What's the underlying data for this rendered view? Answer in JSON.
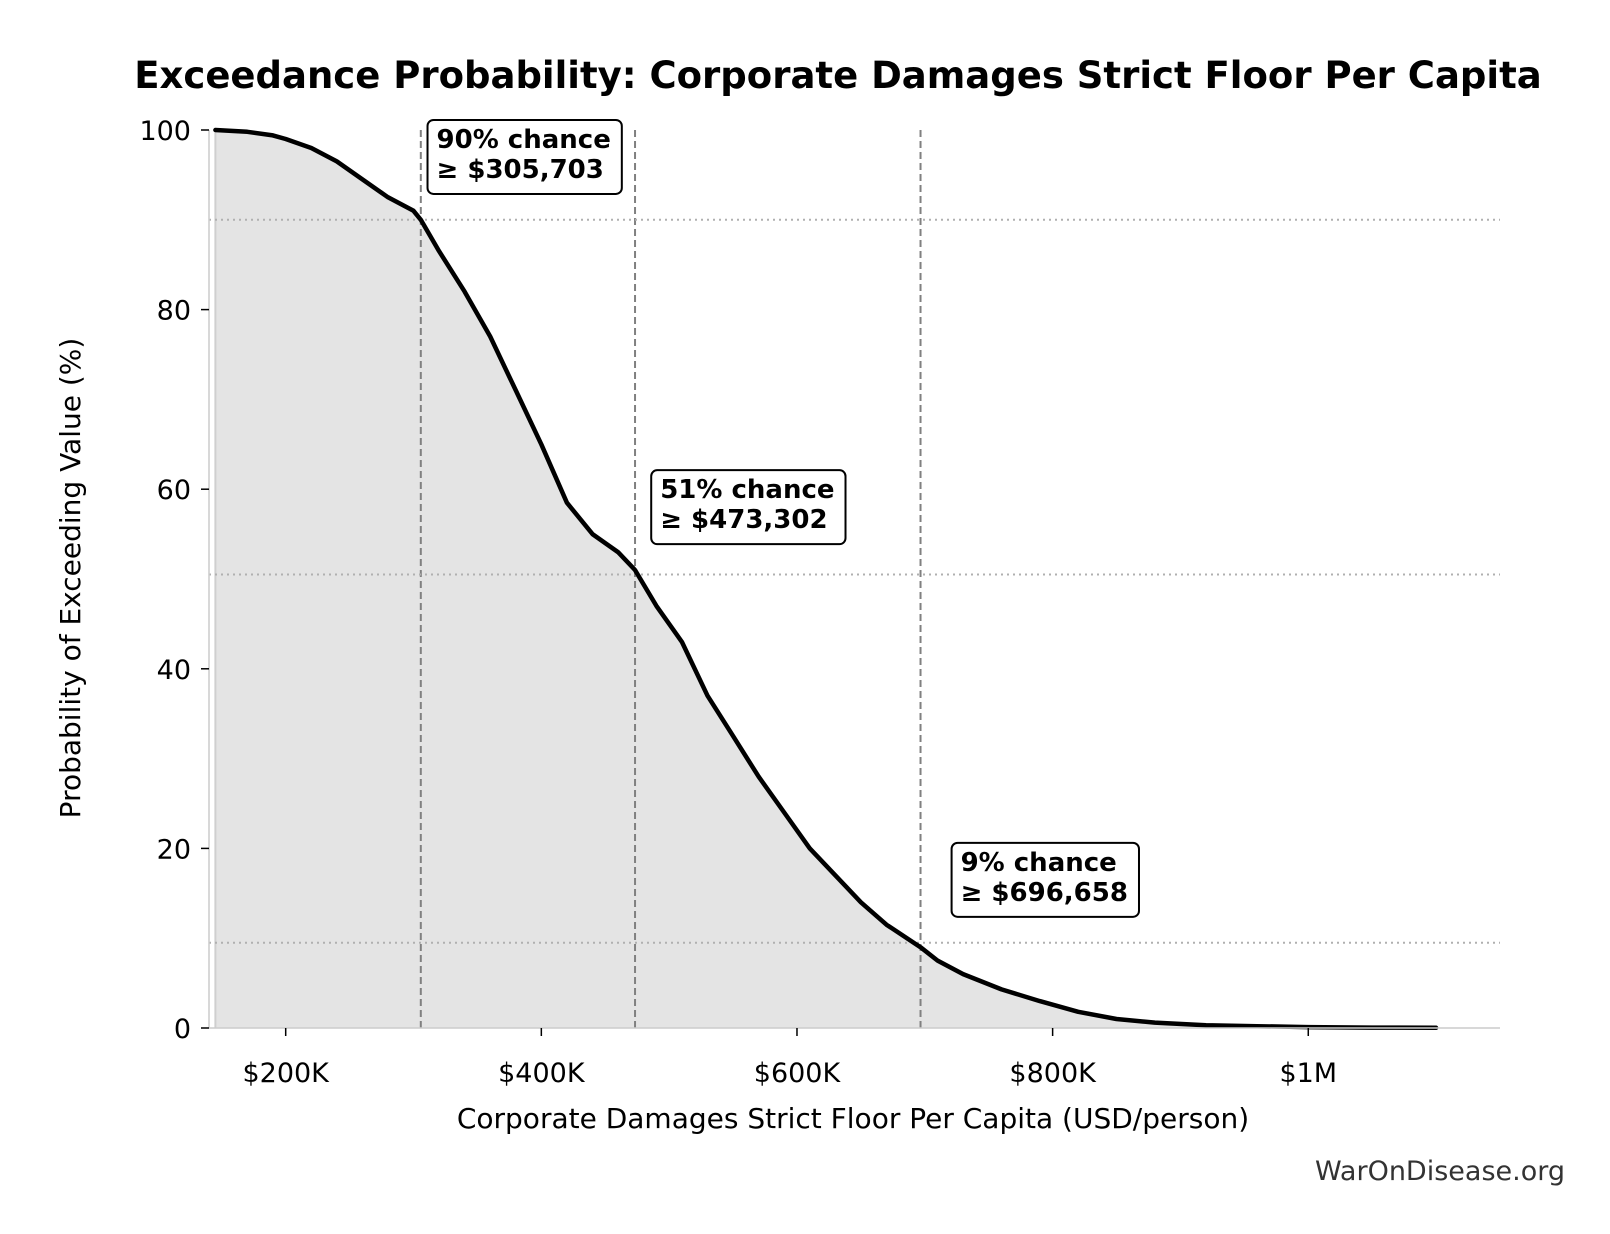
{
  "chart_data": {
    "type": "area",
    "title": "Exceedance Probability: Corporate Damages Strict Floor Per Capita",
    "xlabel": "Corporate Damages Strict Floor Per Capita (USD/person)",
    "ylabel": "Probability of Exceeding Value (%)",
    "xlim": [
      140000,
      1150000
    ],
    "ylim": [
      0,
      100
    ],
    "x_ticks": [
      {
        "value": 200000,
        "label": "$200K"
      },
      {
        "value": 400000,
        "label": "$400K"
      },
      {
        "value": 600000,
        "label": "$600K"
      },
      {
        "value": 800000,
        "label": "$800K"
      },
      {
        "value": 1000000,
        "label": "$1M"
      }
    ],
    "y_ticks": [
      {
        "value": 0,
        "label": "0"
      },
      {
        "value": 20,
        "label": "20"
      },
      {
        "value": 40,
        "label": "40"
      },
      {
        "value": 60,
        "label": "60"
      },
      {
        "value": 80,
        "label": "80"
      },
      {
        "value": 100,
        "label": "100"
      }
    ],
    "grid": false,
    "series": [
      {
        "x": [
          145000,
          170000,
          190000,
          200000,
          220000,
          240000,
          260000,
          280000,
          300000,
          305703,
          320000,
          340000,
          360000,
          380000,
          400000,
          420000,
          440000,
          460000,
          473302,
          490000,
          510000,
          530000,
          550000,
          570000,
          590000,
          610000,
          630000,
          650000,
          670000,
          696658,
          710000,
          730000,
          760000,
          790000,
          820000,
          850000,
          880000,
          920000,
          960000,
          1000000,
          1050000,
          1100000
        ],
        "y": [
          100,
          99.8,
          99.4,
          99,
          98,
          96.5,
          94.5,
          92.5,
          91,
          90,
          86.5,
          82,
          77,
          71,
          65,
          58.5,
          55,
          53,
          51,
          47,
          43,
          37,
          32.5,
          28,
          24,
          20,
          17,
          14,
          11.5,
          9,
          7.5,
          6,
          4.3,
          3,
          1.8,
          1,
          0.6,
          0.3,
          0.2,
          0.1,
          0.05,
          0.02
        ],
        "color": "#000000",
        "fill": "#e4e4e4"
      }
    ],
    "reference_lines": [
      {
        "axis": "x",
        "value": 305703,
        "style": "dashed",
        "color": "#808080"
      },
      {
        "axis": "x",
        "value": 473302,
        "style": "dashed",
        "color": "#808080"
      },
      {
        "axis": "x",
        "value": 696658,
        "style": "dashed",
        "color": "#808080"
      },
      {
        "axis": "y",
        "value": 90,
        "style": "dotted",
        "color": "#b0b0b0"
      },
      {
        "axis": "y",
        "value": 50.5,
        "style": "dotted",
        "color": "#b0b0b0"
      },
      {
        "axis": "y",
        "value": 9.5,
        "style": "dotted",
        "color": "#b0b0b0"
      }
    ],
    "annotations": [
      {
        "line1": "90% chance",
        "line2": "≥ $305,703",
        "x": 318000,
        "y": 98
      },
      {
        "line1": "51% chance",
        "line2": "≥ $473,302",
        "x": 493000,
        "y": 59
      },
      {
        "line1": "9% chance",
        "line2": "≥ $696,658",
        "x": 728000,
        "y": 17.5
      }
    ]
  },
  "watermark": "WarOnDisease.org"
}
